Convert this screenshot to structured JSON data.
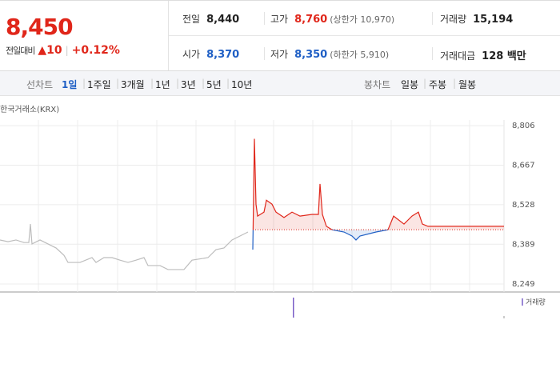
{
  "header": {
    "price": "8,450",
    "change_label": "전일대비",
    "change": "10",
    "change_pct": "+0.12%"
  },
  "summary": {
    "rows": [
      [
        {
          "label": "전일",
          "value": "8,440"
        },
        {
          "label": "고가",
          "value": "8,760",
          "note": "(상한가 10,970)"
        },
        {
          "label": "거래량",
          "value": "15,194"
        }
      ],
      [
        {
          "label": "시가",
          "value": "8,370"
        },
        {
          "label": "저가",
          "value": "8,350",
          "note": "(하한가 5,910)"
        },
        {
          "label": "거래대금",
          "value": "128 백만"
        }
      ]
    ]
  },
  "toolbar": {
    "line_label": "선차트",
    "line_periods": [
      "1일",
      "1주일",
      "3개월",
      "1년",
      "3년",
      "5년",
      "10년"
    ],
    "candle_label": "봉차트",
    "candle_periods": [
      "일봉",
      "주봉",
      "월봉"
    ]
  },
  "source": "한국거래소(KRX)",
  "volume_legend": "거래량",
  "chart_data": {
    "type": "line",
    "x": [
      0,
      10,
      20,
      30,
      36,
      38,
      40,
      50,
      60,
      70,
      80,
      85,
      100,
      115,
      120,
      130,
      140,
      150,
      160,
      170,
      180,
      185,
      200,
      210,
      230,
      240,
      260,
      270,
      280,
      290,
      300,
      310,
      316,
      318,
      320,
      322,
      330,
      333,
      340,
      345,
      355,
      365,
      375,
      390,
      398,
      400,
      403,
      408,
      415,
      430,
      440,
      445,
      450,
      470,
      485,
      492,
      505,
      515,
      523,
      528,
      535,
      630
    ],
    "series": [
      {
        "color": "#bdbdbd",
        "values": [
          8404,
          8398,
          8404,
          8395,
          8395,
          8460,
          8390,
          8404,
          8390,
          8376,
          8350,
          8325,
          8325,
          8342,
          8325,
          8342,
          8342,
          8333,
          8325,
          8333,
          8342,
          8314,
          8314,
          8300,
          8300,
          8333,
          8342,
          8370,
          8376,
          8404,
          8418,
          8432,
          null,
          null,
          null,
          null,
          null,
          null,
          null,
          null,
          null,
          null,
          null,
          null,
          null,
          null,
          null,
          null,
          null,
          null,
          null,
          null,
          null,
          null,
          null,
          null,
          null,
          null,
          null,
          null,
          null,
          null
        ]
      },
      {
        "color": "#e0261a",
        "color_below": "#1f5fc5",
        "values": [
          null,
          null,
          null,
          null,
          null,
          null,
          null,
          null,
          null,
          null,
          null,
          null,
          null,
          null,
          null,
          null,
          null,
          null,
          null,
          null,
          null,
          null,
          null,
          null,
          null,
          null,
          null,
          null,
          null,
          null,
          null,
          null,
          8370,
          8760,
          8530,
          8488,
          8502,
          8544,
          8530,
          8502,
          8483,
          8502,
          8488,
          8494,
          8494,
          8601,
          8494,
          8452,
          8440,
          8432,
          8418,
          8404,
          8418,
          8432,
          8440,
          8488,
          8460,
          8488,
          8502,
          8460,
          8452,
          8452
        ]
      }
    ],
    "reference": 8440,
    "xlim": [
      0,
      630
    ],
    "ylim": [
      8221,
      8826
    ],
    "yticks": [
      {
        "value": 8806,
        "label": "8,806"
      },
      {
        "value": 8667,
        "label": "8,667"
      },
      {
        "value": 8528,
        "label": "8,528"
      },
      {
        "value": 8389,
        "label": "8,389"
      },
      {
        "value": 8249,
        "label": "8,249"
      }
    ]
  }
}
